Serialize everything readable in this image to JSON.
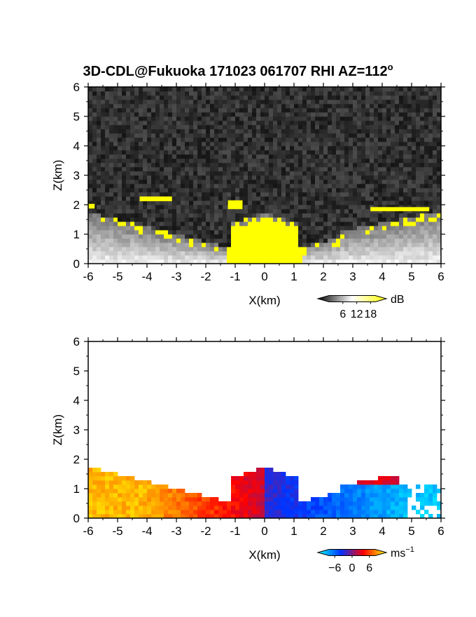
{
  "title": "3D-CDL@Fukuoka 171023 061707 RHI AZ=112",
  "title_suffix": "o",
  "chart_data": [
    {
      "type": "heatmap",
      "name": "reflectivity-panel",
      "xlabel": "X(km)",
      "ylabel": "Z(km)",
      "xlim": [
        -6,
        6
      ],
      "ylim": [
        0,
        6
      ],
      "xticks": [
        "-6",
        "-5",
        "-4",
        "-3",
        "-2",
        "-1",
        "0",
        "1",
        "2",
        "3",
        "4",
        "5",
        "6"
      ],
      "yticks": [
        "0",
        "1",
        "2",
        "3",
        "4",
        "5",
        "6"
      ],
      "colorbar": {
        "unit": "dB",
        "ticks": [
          "6",
          "12",
          "18"
        ],
        "range": [
          0,
          20
        ],
        "colors": [
          "#000000",
          "#ffffff",
          "#ffff00"
        ]
      },
      "saturated_color": "#ffff00"
    },
    {
      "type": "heatmap",
      "name": "velocity-panel",
      "xlabel": "X(km)",
      "ylabel": "Z(km)",
      "xlim": [
        -6,
        6
      ],
      "ylim": [
        0,
        6
      ],
      "xticks": [
        "-6",
        "-5",
        "-4",
        "-3",
        "-2",
        "-1",
        "0",
        "1",
        "2",
        "3",
        "4",
        "5",
        "6"
      ],
      "yticks": [
        "0",
        "1",
        "2",
        "3",
        "4",
        "5",
        "6"
      ],
      "colorbar": {
        "unit": "ms",
        "unit_sup": "−1",
        "ticks": [
          "−6",
          "0",
          "6"
        ],
        "range": [
          -8,
          8
        ],
        "colors": [
          "#00ffff",
          "#0033ff",
          "#ff0000",
          "#ffff00"
        ]
      }
    }
  ]
}
